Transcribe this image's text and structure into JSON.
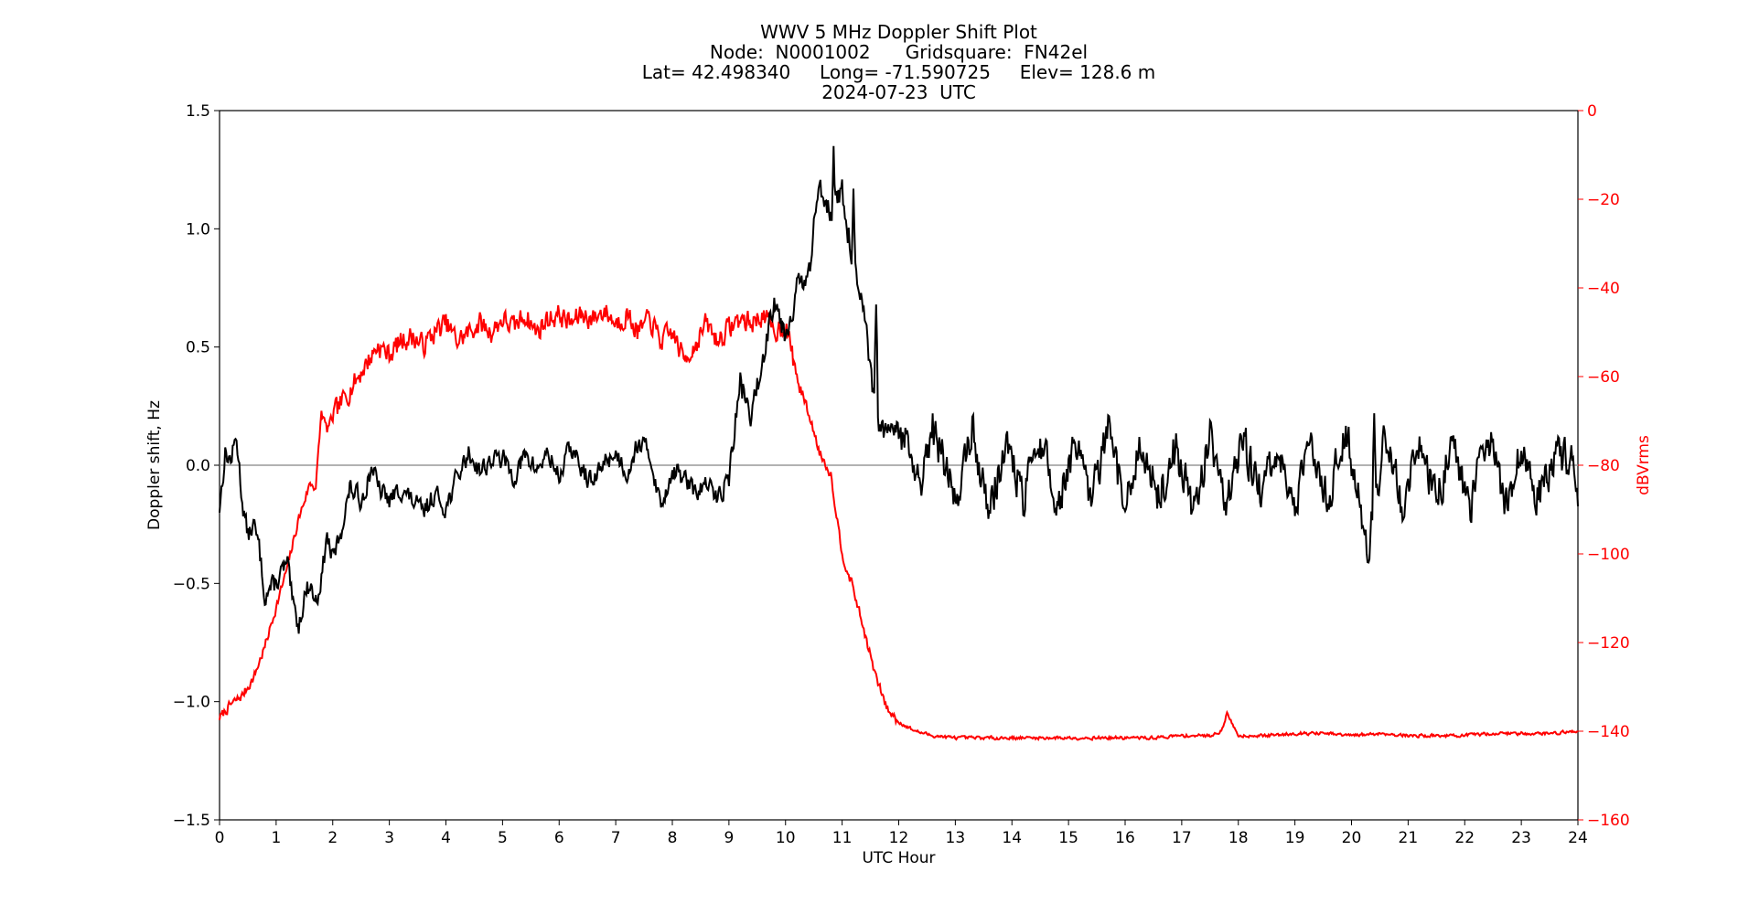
{
  "chart_data": {
    "type": "line",
    "title_lines": [
      "WWV 5 MHz Doppler Shift Plot",
      "Node:  N0001002      Gridsquare:  FN42el",
      "Lat= 42.498340     Long= -71.590725     Elev= 128.6 m",
      "2024-07-23  UTC"
    ],
    "xlabel": "UTC Hour",
    "ylabel": "Doppler shift, Hz",
    "y2label": "dBVrms",
    "xlim": [
      0,
      24
    ],
    "ylim": [
      -1.5,
      1.5
    ],
    "y2lim": [
      -160,
      0
    ],
    "xticks": [
      "0",
      "1",
      "2",
      "3",
      "4",
      "5",
      "6",
      "7",
      "8",
      "9",
      "10",
      "11",
      "12",
      "13",
      "14",
      "15",
      "16",
      "17",
      "18",
      "19",
      "20",
      "21",
      "22",
      "23",
      "24"
    ],
    "yticks": [
      "−1.5",
      "−1.0",
      "−0.5",
      "0.0",
      "0.5",
      "1.0",
      "1.5"
    ],
    "y2ticks": [
      "0",
      "−20",
      "−40",
      "−60",
      "−80",
      "−100",
      "−120",
      "−140",
      "−160"
    ],
    "reference_line_y": 0,
    "colors": {
      "doppler": "#000000",
      "power": "#ff0000",
      "zero_line": "#999999"
    },
    "series": [
      {
        "axis": "left",
        "x": [
          0,
          0.1,
          0.2,
          0.3,
          0.4,
          0.5,
          0.6,
          0.7,
          0.8,
          0.9,
          1.0,
          1.1,
          1.2,
          1.3,
          1.4,
          1.5,
          1.6,
          1.7,
          1.8,
          1.9,
          2.0,
          2.1,
          2.2,
          2.3,
          2.4,
          2.5,
          2.6,
          2.7,
          2.8,
          2.9,
          3.0,
          3.2,
          3.4,
          3.6,
          3.8,
          4.0,
          4.2,
          4.4,
          4.6,
          4.8,
          5.0,
          5.2,
          5.4,
          5.6,
          5.8,
          6.0,
          6.2,
          6.4,
          6.6,
          6.8,
          7.0,
          7.2,
          7.4,
          7.6,
          7.8,
          8.0,
          8.2,
          8.4,
          8.6,
          8.8,
          9.0,
          9.2,
          9.4,
          9.6,
          9.8,
          10.0,
          10.2,
          10.4,
          10.6,
          10.8,
          11.0,
          11.2,
          11.4,
          11.6,
          11.8,
          12.0,
          12.2,
          12.4,
          12.6,
          12.8,
          13.0,
          13.3,
          13.6,
          13.9,
          14.2,
          14.5,
          14.8,
          15.1,
          15.4,
          15.7,
          16.0,
          16.3,
          16.6,
          16.9,
          17.2,
          17.5,
          17.8,
          18.1,
          18.4,
          18.7,
          19.0,
          19.3,
          19.6,
          19.9,
          20.1,
          20.3,
          20.6,
          20.9,
          21.2,
          21.5,
          21.8,
          22.1,
          22.4,
          22.7,
          23.0,
          23.3,
          23.6,
          23.9,
          24.0
        ],
        "values": [
          -0.18,
          0.05,
          0.02,
          0.12,
          -0.15,
          -0.3,
          -0.25,
          -0.35,
          -0.55,
          -0.52,
          -0.5,
          -0.45,
          -0.42,
          -0.6,
          -0.68,
          -0.55,
          -0.5,
          -0.58,
          -0.48,
          -0.3,
          -0.4,
          -0.32,
          -0.22,
          -0.1,
          -0.12,
          -0.15,
          -0.08,
          0,
          -0.1,
          -0.12,
          -0.15,
          -0.1,
          -0.15,
          -0.2,
          -0.12,
          -0.18,
          -0.05,
          0.05,
          -0.02,
          0.02,
          0.03,
          -0.05,
          0.04,
          -0.02,
          0.05,
          -0.05,
          0.08,
          -0.02,
          -0.08,
          0.02,
          0.05,
          -0.03,
          0.1,
          0.05,
          -0.18,
          -0.02,
          -0.05,
          -0.12,
          -0.08,
          -0.14,
          -0.05,
          0.35,
          0.2,
          0.45,
          0.72,
          0.55,
          0.75,
          0.78,
          1.2,
          1.08,
          1.15,
          0.85,
          0.6,
          0.18,
          0.12,
          0.15,
          0.05,
          -0.12,
          0.15,
          0.02,
          -0.15,
          0.15,
          -0.2,
          0.1,
          -0.15,
          0.12,
          -0.18,
          0.08,
          -0.15,
          0.14,
          -0.18,
          0.1,
          -0.15,
          0.08,
          -0.2,
          0.12,
          -0.15,
          0.1,
          -0.12,
          0.05,
          -0.18,
          0.1,
          -0.15,
          0.18,
          -0.1,
          -0.35,
          0.15,
          -0.18,
          0.12,
          -0.16,
          0.1,
          -0.18,
          0.15,
          -0.15,
          0.05,
          -0.12,
          0.02,
          0.05,
          -0.2
        ],
        "peaks": [
          [
            10.85,
            1.35
          ],
          [
            11.2,
            1.17
          ],
          [
            11.6,
            0.68
          ],
          [
            20.4,
            0.22
          ]
        ]
      },
      {
        "axis": "right",
        "x": [
          0,
          0.2,
          0.4,
          0.6,
          0.8,
          1.0,
          1.2,
          1.4,
          1.6,
          1.7,
          1.8,
          1.9,
          2.0,
          2.2,
          2.4,
          2.6,
          2.8,
          3.0,
          3.2,
          3.4,
          3.6,
          3.8,
          4.0,
          4.2,
          4.4,
          4.6,
          4.8,
          5.0,
          5.2,
          5.4,
          5.6,
          5.8,
          6.0,
          6.2,
          6.4,
          6.6,
          6.8,
          7.0,
          7.2,
          7.4,
          7.6,
          7.8,
          8.0,
          8.2,
          8.4,
          8.6,
          8.8,
          9.0,
          9.2,
          9.4,
          9.6,
          9.8,
          10.0,
          10.2,
          10.4,
          10.6,
          10.8,
          11.0,
          11.2,
          11.4,
          11.6,
          11.8,
          12.0,
          12.3,
          12.6,
          13.0,
          13.5,
          14.0,
          14.5,
          15.0,
          15.5,
          16.0,
          16.5,
          17.0,
          17.5,
          17.7,
          17.8,
          18.0,
          18.5,
          19.0,
          19.5,
          20.0,
          20.5,
          21.0,
          21.5,
          22.0,
          22.5,
          23.0,
          23.5,
          24.0
        ],
        "values": [
          -137,
          -134,
          -132,
          -128,
          -121,
          -112,
          -103,
          -92,
          -84,
          -85,
          -68,
          -72,
          -69,
          -65,
          -61,
          -57,
          -53,
          -55,
          -52,
          -51,
          -53,
          -50,
          -48,
          -52,
          -50,
          -48,
          -50,
          -47,
          -49,
          -46,
          -50,
          -47,
          -46,
          -48,
          -46,
          -47,
          -45,
          -48,
          -46,
          -50,
          -47,
          -52,
          -50,
          -56,
          -53,
          -48,
          -52,
          -49,
          -47,
          -48,
          -46,
          -50,
          -48,
          -60,
          -68,
          -77,
          -82,
          -100,
          -108,
          -118,
          -128,
          -135,
          -138,
          -140,
          -141,
          -141.5,
          -141.5,
          -141.5,
          -141.5,
          -141.5,
          -141.5,
          -141.5,
          -141.5,
          -141,
          -141,
          -140,
          -136,
          -141,
          -141,
          -140.5,
          -140.5,
          -141,
          -140.5,
          -141,
          -141,
          -141,
          -140.5,
          -140.5,
          -140.5,
          -140
        ]
      }
    ]
  }
}
